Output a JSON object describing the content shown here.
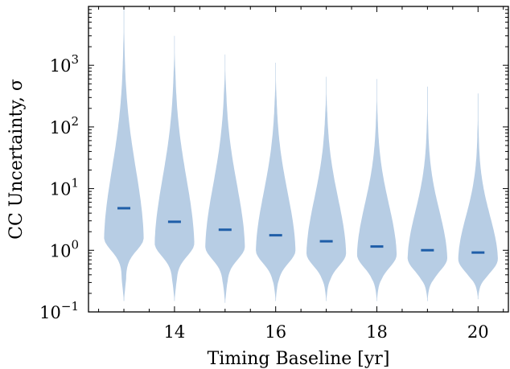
{
  "chart_data": {
    "type": "violin",
    "xlabel": "Timing Baseline [yr]",
    "ylabel": "CC Uncertainty, σ",
    "yscale": "log",
    "xlim": [
      12.3,
      20.6
    ],
    "ylim": [
      0.1,
      9000
    ],
    "xticks": [
      14,
      16,
      18,
      20
    ],
    "yticks": [
      {
        "base": "10",
        "exp": "−1",
        "value": 0.1
      },
      {
        "base": "10",
        "exp": "0",
        "value": 1
      },
      {
        "base": "10",
        "exp": "1",
        "value": 10
      },
      {
        "base": "10",
        "exp": "2",
        "value": 100
      },
      {
        "base": "10",
        "exp": "3",
        "value": 1000
      }
    ],
    "grid": false,
    "fill_color": "#b7cde4",
    "median_color": "#1f5ea8",
    "violins": [
      {
        "x": 13,
        "median": 4.8,
        "min": 0.15,
        "max": 9000,
        "mode": 1.6
      },
      {
        "x": 14,
        "median": 2.9,
        "min": 0.15,
        "max": 3000,
        "mode": 1.3
      },
      {
        "x": 15,
        "median": 2.15,
        "min": 0.14,
        "max": 1500,
        "mode": 1.15
      },
      {
        "x": 16,
        "median": 1.75,
        "min": 0.15,
        "max": 1100,
        "mode": 1.0
      },
      {
        "x": 17,
        "median": 1.4,
        "min": 0.15,
        "max": 650,
        "mode": 0.9
      },
      {
        "x": 18,
        "median": 1.15,
        "min": 0.15,
        "max": 600,
        "mode": 0.85
      },
      {
        "x": 19,
        "median": 1.0,
        "min": 0.15,
        "max": 450,
        "mode": 0.75
      },
      {
        "x": 20,
        "median": 0.92,
        "min": 0.16,
        "max": 350,
        "mode": 0.72
      }
    ]
  }
}
